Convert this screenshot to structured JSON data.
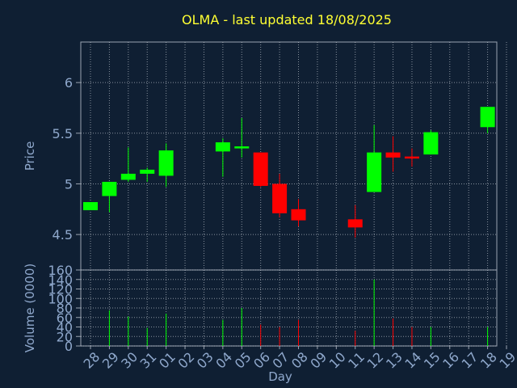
{
  "chart_data": [
    {
      "type": "candlestick",
      "title": "OLMA - last updated 18/08/2025",
      "ylabel": "Price",
      "ylim": [
        4.15,
        6.4
      ],
      "yticks": [
        4.5,
        5,
        5.5,
        6
      ],
      "ytick_labels": [
        "4.5",
        "5",
        "5.5",
        "6"
      ],
      "categories": [
        "28",
        "29",
        "30",
        "31",
        "01",
        "02",
        "03",
        "04",
        "05",
        "06",
        "07",
        "08",
        "09",
        "10",
        "11",
        "12",
        "13",
        "14",
        "15",
        "16",
        "17",
        "18",
        "19"
      ],
      "series": [
        {
          "x": "28",
          "open": 4.74,
          "high": 4.82,
          "low": 4.74,
          "close": 4.82
        },
        {
          "x": "29",
          "open": 4.88,
          "high": 5.02,
          "low": 4.72,
          "close": 5.02
        },
        {
          "x": "30",
          "open": 5.04,
          "high": 5.36,
          "low": 5.02,
          "close": 5.1
        },
        {
          "x": "31",
          "open": 5.1,
          "high": 5.16,
          "low": 5.02,
          "close": 5.14
        },
        {
          "x": "01",
          "open": 5.08,
          "high": 5.4,
          "low": 4.97,
          "close": 5.33
        },
        {
          "x": "04",
          "open": 5.32,
          "high": 5.45,
          "low": 5.07,
          "close": 5.41
        },
        {
          "x": "05",
          "open": 5.35,
          "high": 5.65,
          "low": 5.26,
          "close": 5.37
        },
        {
          "x": "06",
          "open": 5.31,
          "high": 5.31,
          "low": 4.97,
          "close": 4.98
        },
        {
          "x": "07",
          "open": 5.0,
          "high": 5.1,
          "low": 4.67,
          "close": 4.71
        },
        {
          "x": "08",
          "open": 4.75,
          "high": 4.85,
          "low": 4.58,
          "close": 4.64
        },
        {
          "x": "11",
          "open": 4.65,
          "high": 4.79,
          "low": 4.47,
          "close": 4.57
        },
        {
          "x": "12",
          "open": 4.92,
          "high": 5.58,
          "low": 4.92,
          "close": 5.31
        },
        {
          "x": "13",
          "open": 5.31,
          "high": 5.47,
          "low": 5.12,
          "close": 5.26
        },
        {
          "x": "14",
          "open": 5.27,
          "high": 5.35,
          "low": 5.17,
          "close": 5.25
        },
        {
          "x": "15",
          "open": 5.29,
          "high": 5.53,
          "low": 5.29,
          "close": 5.51
        },
        {
          "x": "18",
          "open": 5.56,
          "high": 5.76,
          "low": 5.5,
          "close": 5.76
        }
      ]
    },
    {
      "type": "bar",
      "ylabel": "Volume (0000)",
      "xlabel": "Day",
      "ylim": [
        0,
        160
      ],
      "yticks": [
        0,
        20,
        40,
        60,
        80,
        100,
        120,
        140,
        160
      ],
      "ytick_labels": [
        "0",
        "20",
        "40",
        "60",
        "80",
        "100",
        "120",
        "140",
        "160"
      ],
      "categories": [
        "28",
        "29",
        "30",
        "31",
        "01",
        "02",
        "03",
        "04",
        "05",
        "06",
        "07",
        "08",
        "09",
        "10",
        "11",
        "12",
        "13",
        "14",
        "15",
        "16",
        "17",
        "18",
        "19"
      ],
      "series": [
        {
          "x": "28",
          "value": 0,
          "direction": "up"
        },
        {
          "x": "29",
          "value": 75,
          "direction": "up"
        },
        {
          "x": "30",
          "value": 62,
          "direction": "up"
        },
        {
          "x": "31",
          "value": 38,
          "direction": "up"
        },
        {
          "x": "01",
          "value": 68,
          "direction": "up"
        },
        {
          "x": "04",
          "value": 55,
          "direction": "up"
        },
        {
          "x": "05",
          "value": 80,
          "direction": "up"
        },
        {
          "x": "06",
          "value": 45,
          "direction": "down"
        },
        {
          "x": "07",
          "value": 40,
          "direction": "down"
        },
        {
          "x": "08",
          "value": 55,
          "direction": "down"
        },
        {
          "x": "11",
          "value": 32,
          "direction": "down"
        },
        {
          "x": "12",
          "value": 140,
          "direction": "up"
        },
        {
          "x": "13",
          "value": 58,
          "direction": "down"
        },
        {
          "x": "14",
          "value": 40,
          "direction": "down"
        },
        {
          "x": "15",
          "value": 40,
          "direction": "up"
        },
        {
          "x": "18",
          "value": 40,
          "direction": "up"
        }
      ]
    }
  ],
  "colors": {
    "background": "#0f1f33",
    "axis": "#9aa3b0",
    "grid": "#c8ced6",
    "title": "#ffff33",
    "label": "#8fa8cc",
    "up": "#00ff00",
    "down": "#ff0000"
  }
}
